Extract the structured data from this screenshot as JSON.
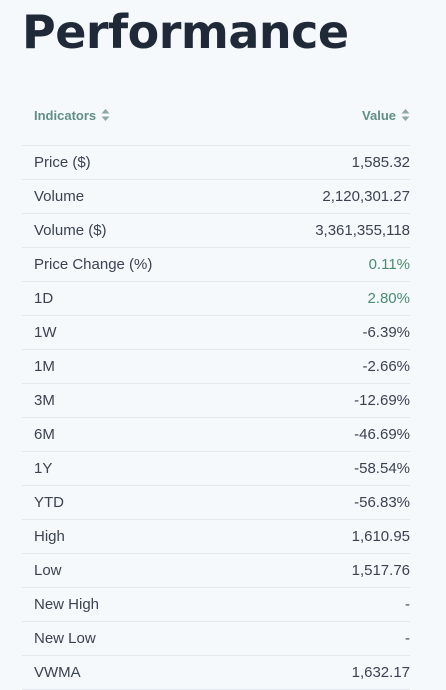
{
  "title": "Performance",
  "headers": {
    "indicators": "Indicators",
    "value": "Value"
  },
  "colors": {
    "accent_header": "#5f8f86",
    "positive": "#4a8c6d",
    "text": "#3b4250",
    "title": "#1f2937"
  },
  "rows": [
    {
      "label": "Price ($)",
      "value": "1,585.32",
      "tone": "neutral"
    },
    {
      "label": "Volume",
      "value": "2,120,301.27",
      "tone": "neutral"
    },
    {
      "label": "Volume ($)",
      "value": "3,361,355,118",
      "tone": "neutral"
    },
    {
      "label": "Price Change (%)",
      "value": "0.11%",
      "tone": "pos"
    },
    {
      "label": "1D",
      "value": "2.80%",
      "tone": "pos"
    },
    {
      "label": "1W",
      "value": "-6.39%",
      "tone": "neutral"
    },
    {
      "label": "1M",
      "value": "-2.66%",
      "tone": "neutral"
    },
    {
      "label": "3M",
      "value": "-12.69%",
      "tone": "neutral"
    },
    {
      "label": "6M",
      "value": "-46.69%",
      "tone": "neutral"
    },
    {
      "label": "1Y",
      "value": "-58.54%",
      "tone": "neutral"
    },
    {
      "label": "YTD",
      "value": "-56.83%",
      "tone": "neutral"
    },
    {
      "label": "High",
      "value": "1,610.95",
      "tone": "neutral"
    },
    {
      "label": "Low",
      "value": "1,517.76",
      "tone": "neutral"
    },
    {
      "label": "New High",
      "value": "-",
      "tone": "neutral"
    },
    {
      "label": "New Low",
      "value": "-",
      "tone": "neutral"
    },
    {
      "label": "VWMA",
      "value": "1,632.17",
      "tone": "neutral"
    }
  ]
}
